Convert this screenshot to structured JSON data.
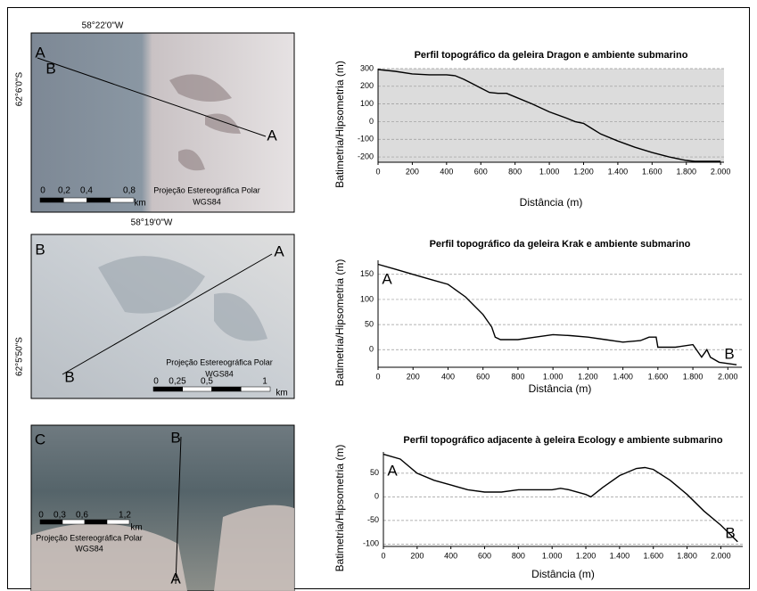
{
  "chart_data": [
    {
      "type": "line",
      "title": "Perfil topográfico da geleira Dragon e ambiente submarino",
      "ylabel": "Batimetria/Hipsometria (m)",
      "xlabel": "Distância (m)",
      "x": [
        0,
        100,
        200,
        300,
        400,
        450,
        500,
        550,
        600,
        650,
        700,
        750,
        800,
        900,
        1000,
        1100,
        1150,
        1200,
        1250,
        1300,
        1400,
        1500,
        1600,
        1700,
        1800,
        1850,
        2000
      ],
      "values": [
        295,
        285,
        270,
        265,
        265,
        260,
        240,
        215,
        190,
        165,
        160,
        160,
        140,
        100,
        55,
        20,
        0,
        -10,
        -40,
        -70,
        -110,
        -145,
        -175,
        -200,
        -220,
        -225,
        -225
      ],
      "color": "#000000",
      "background": "#dcdcdc",
      "grid": true,
      "xlim": [
        0,
        2020
      ],
      "ylim": [
        -230,
        300
      ],
      "xticks": [
        0,
        200,
        400,
        600,
        800,
        {
          "value": 1000,
          "label": "1.000"
        },
        {
          "value": 1200,
          "label": "1.200"
        },
        {
          "value": 1400,
          "label": "1.400"
        },
        {
          "value": 1600,
          "label": "1.600"
        },
        {
          "value": 1800,
          "label": "1.800"
        },
        {
          "value": 2000,
          "label": "2.000"
        }
      ],
      "yticks": [
        -200,
        -100,
        0,
        100,
        200,
        300
      ],
      "annotations": []
    },
    {
      "type": "line",
      "title": "Perfil topográfico da geleira Krak e ambiente submarino",
      "ylabel": "Batimetria/Hipsometria (m)",
      "xlabel": "Distância (m)",
      "x": [
        0,
        100,
        200,
        300,
        400,
        500,
        600,
        650,
        670,
        700,
        800,
        900,
        1000,
        1100,
        1200,
        1300,
        1400,
        1500,
        1550,
        1590,
        1600,
        1700,
        1800,
        1850,
        1880,
        1900,
        1950,
        2050
      ],
      "values": [
        170,
        160,
        150,
        140,
        130,
        105,
        70,
        45,
        25,
        20,
        20,
        25,
        30,
        28,
        25,
        20,
        15,
        18,
        25,
        25,
        5,
        5,
        10,
        -15,
        0,
        -15,
        -25,
        -30
      ],
      "color": "#000000",
      "background": "#ffffff",
      "grid": true,
      "xlim": [
        0,
        2080
      ],
      "ylim": [
        -35,
        178
      ],
      "xticks": [
        0,
        200,
        400,
        600,
        800,
        {
          "value": 1000,
          "label": "1.000"
        },
        {
          "value": 1200,
          "label": "1.200"
        },
        {
          "value": 1400,
          "label": "1.400"
        },
        {
          "value": 1600,
          "label": "1.600"
        },
        {
          "value": 1800,
          "label": "1.800"
        },
        {
          "value": 2000,
          "label": "2.000"
        }
      ],
      "yticks": [
        0,
        50,
        100,
        150
      ],
      "annotations": [
        "A",
        "B"
      ]
    },
    {
      "type": "line",
      "title": "Perfil topográfico adjacente à geleira Ecology e ambiente submarino",
      "ylabel": "Batimetria/Hipsometria (m)",
      "xlabel": "Distância (m)",
      "x": [
        0,
        100,
        200,
        300,
        400,
        500,
        600,
        700,
        800,
        900,
        1000,
        1050,
        1100,
        1200,
        1230,
        1300,
        1400,
        1500,
        1550,
        1600,
        1700,
        1800,
        1900,
        2000,
        2100
      ],
      "values": [
        90,
        80,
        50,
        35,
        25,
        15,
        10,
        10,
        15,
        15,
        15,
        18,
        15,
        5,
        0,
        20,
        45,
        60,
        62,
        58,
        35,
        5,
        -30,
        -60,
        -95
      ],
      "color": "#000000",
      "background": "#ffffff",
      "grid": true,
      "xlim": [
        0,
        2130
      ],
      "ylim": [
        -105,
        95
      ],
      "xticks": [
        0,
        200,
        400,
        600,
        800,
        {
          "value": 1000,
          "label": "1.000"
        },
        {
          "value": 1200,
          "label": "1.200"
        },
        {
          "value": 1400,
          "label": "1.400"
        },
        {
          "value": 1600,
          "label": "1.600"
        },
        {
          "value": 1800,
          "label": "1.800"
        },
        {
          "value": 2000,
          "label": "2.000"
        }
      ],
      "yticks": [
        -100,
        -50,
        0,
        50
      ],
      "annotations": [
        "A",
        "B"
      ]
    }
  ],
  "maps": [
    {
      "longitude": "58°22'0\"W",
      "latitude": "62°6'0\"S",
      "labels": [
        "A",
        "B",
        "A"
      ],
      "scale": [
        "0",
        "0,2",
        "0,4",
        "0,8",
        "km"
      ],
      "projection": [
        "Projeção Estereográfica Polar",
        "WGS84"
      ]
    },
    {
      "longitude": "58°19'0\"W",
      "latitude": "62°5'50\"S",
      "labels": [
        "B",
        "A",
        "B"
      ],
      "scale": [
        "0",
        "0,25",
        "0,5",
        "1",
        "km"
      ],
      "projection": [
        "Projeção Estereográfica Polar",
        "WGS84"
      ]
    },
    {
      "labels": [
        "C",
        "B",
        "A"
      ],
      "scale": [
        "0",
        "0,3",
        "0,6",
        "1,2",
        "km"
      ],
      "projection": [
        "Projeção Estereográfica Polar",
        "WGS84"
      ]
    }
  ]
}
